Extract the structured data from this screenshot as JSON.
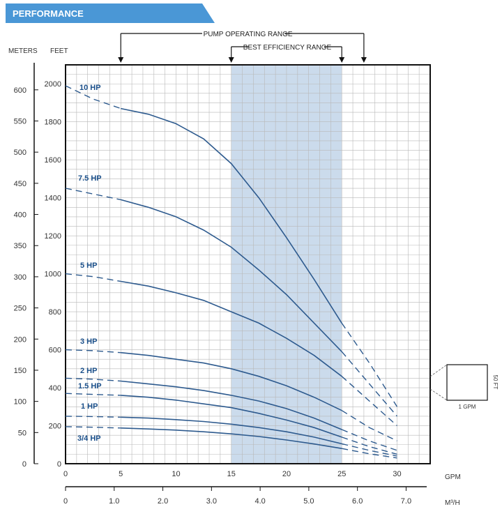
{
  "header": {
    "title": "PERFORMANCE"
  },
  "colors": {
    "banner": "#4a97d6",
    "curve": "#2d5a8e",
    "efficiency_band": "#b9cfe6",
    "grid": "#b8b8b8"
  },
  "chart_data": {
    "type": "line",
    "x_units": [
      "GPM",
      "M³/H"
    ],
    "y_units": [
      "METERS",
      "FEET"
    ],
    "xlim": [
      0,
      33
    ],
    "ylim_feet": [
      0,
      2100
    ],
    "x_ticks_gpm": [
      "0",
      "5",
      "10",
      "15",
      "20",
      "25",
      "30"
    ],
    "x_ticks_m3h": [
      "0",
      "1.0",
      "2.0",
      "3.0",
      "4.0",
      "5.0",
      "6.0",
      "7.0"
    ],
    "y_ticks_feet": [
      "0",
      "200",
      "400",
      "600",
      "800",
      "1000",
      "1200",
      "1400",
      "1600",
      "1800",
      "2000"
    ],
    "y_ticks_meters": [
      "0",
      "50",
      "100",
      "150",
      "200",
      "250",
      "300",
      "350",
      "400",
      "450",
      "500",
      "550",
      "600"
    ],
    "grid": true,
    "pump_operating_range": {
      "label": "PUMP OPERATING RANGE",
      "from": 5,
      "to": 27
    },
    "best_efficiency_range": {
      "label": "BEST EFFICIENCY RANGE",
      "from": 15,
      "to": 25
    },
    "scale_box": {
      "width_label": "1 GPM",
      "height_label": "50 FT"
    },
    "series": [
      {
        "name": "10 HP",
        "x": [
          0,
          2.5,
          5,
          7.5,
          10,
          12.5,
          15,
          17.5,
          20,
          22.5,
          25,
          27.5,
          30
        ],
        "y": [
          1990,
          1920,
          1870,
          1840,
          1790,
          1710,
          1580,
          1400,
          1190,
          970,
          740,
          530,
          300
        ]
      },
      {
        "name": "7.5 HP",
        "x": [
          0,
          2.5,
          5,
          7.5,
          10,
          12.5,
          15,
          17.5,
          20,
          22.5,
          25,
          27.5,
          30
        ],
        "y": [
          1450,
          1420,
          1390,
          1350,
          1300,
          1230,
          1140,
          1020,
          890,
          740,
          590,
          420,
          250
        ]
      },
      {
        "name": "5 HP",
        "x": [
          0,
          2.5,
          5,
          7.5,
          10,
          12.5,
          15,
          17.5,
          20,
          22.5,
          25,
          27.5,
          30
        ],
        "y": [
          1000,
          985,
          960,
          935,
          900,
          860,
          800,
          740,
          660,
          570,
          460,
          330,
          200
        ]
      },
      {
        "name": "3 HP",
        "x": [
          0,
          2.5,
          5,
          7.5,
          10,
          12.5,
          15,
          17.5,
          20,
          22.5,
          25,
          27.5,
          30
        ],
        "y": [
          600,
          595,
          585,
          570,
          550,
          530,
          500,
          460,
          410,
          350,
          280,
          190,
          120
        ]
      },
      {
        "name": "2 HP",
        "x": [
          0,
          2.5,
          5,
          7.5,
          10,
          12.5,
          15,
          17.5,
          20,
          22.5,
          25,
          27.5,
          30
        ],
        "y": [
          450,
          445,
          435,
          420,
          405,
          385,
          360,
          330,
          290,
          240,
          180,
          120,
          70
        ]
      },
      {
        "name": "1.5 HP",
        "x": [
          0,
          2.5,
          5,
          7.5,
          10,
          12.5,
          15,
          17.5,
          20,
          22.5,
          25,
          27.5,
          30
        ],
        "y": [
          370,
          365,
          360,
          350,
          335,
          315,
          295,
          265,
          230,
          190,
          140,
          90,
          50
        ]
      },
      {
        "name": "1 HP",
        "x": [
          0,
          2.5,
          5,
          7.5,
          10,
          12.5,
          15,
          17.5,
          20,
          22.5,
          25,
          27.5,
          30
        ],
        "y": [
          250,
          248,
          245,
          240,
          232,
          222,
          208,
          190,
          168,
          140,
          105,
          70,
          40
        ]
      },
      {
        "name": "3/4 HP",
        "x": [
          0,
          2.5,
          5,
          7.5,
          10,
          12.5,
          15,
          17.5,
          20,
          22.5,
          25,
          27.5,
          30
        ],
        "y": [
          195,
          192,
          188,
          183,
          177,
          168,
          157,
          143,
          125,
          104,
          80,
          52,
          30
        ]
      }
    ]
  }
}
